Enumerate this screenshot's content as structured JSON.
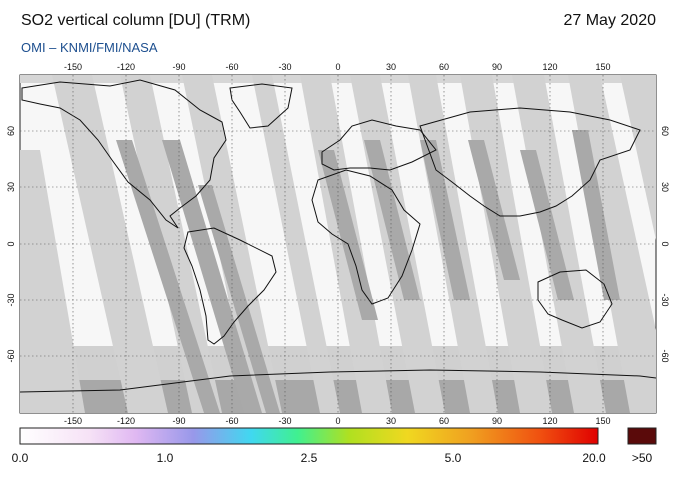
{
  "header": {
    "title": "SO2 vertical column [DU] (TRM)",
    "date": "27 May 2020",
    "credits": "OMI  –  KNMI/FMI/NASA"
  },
  "map": {
    "top_lon_labels": [
      "-150",
      "-120",
      "-90",
      "-60",
      "-30",
      "0",
      "30",
      "60",
      "90",
      "120",
      "150"
    ],
    "bottom_lon_labels": [
      "-150",
      "-120",
      "-90",
      "-60",
      "-30",
      "0",
      "30",
      "60",
      "90",
      "120",
      "150"
    ],
    "left_lat_labels": [
      "60",
      "30",
      "0",
      "-30",
      "-60"
    ],
    "right_lat_labels": [
      "60",
      "30",
      "0",
      "-30",
      "-60"
    ],
    "lon_range": [
      -180,
      180
    ],
    "lat_range": [
      -90,
      90
    ]
  },
  "colorbar": {
    "tick_labels": [
      "0.0",
      "1.0",
      "2.5",
      "5.0",
      "20.0"
    ],
    "overflow_label": ">50",
    "colors": [
      "#ffffff",
      "#f2d6f2",
      "#d8a8f0",
      "#9090e8",
      "#40e0f0",
      "#40f080",
      "#a0e020",
      "#f0e020",
      "#f0a020",
      "#f05010",
      "#e00000"
    ],
    "overflow_color": "#5a0a0a"
  }
}
